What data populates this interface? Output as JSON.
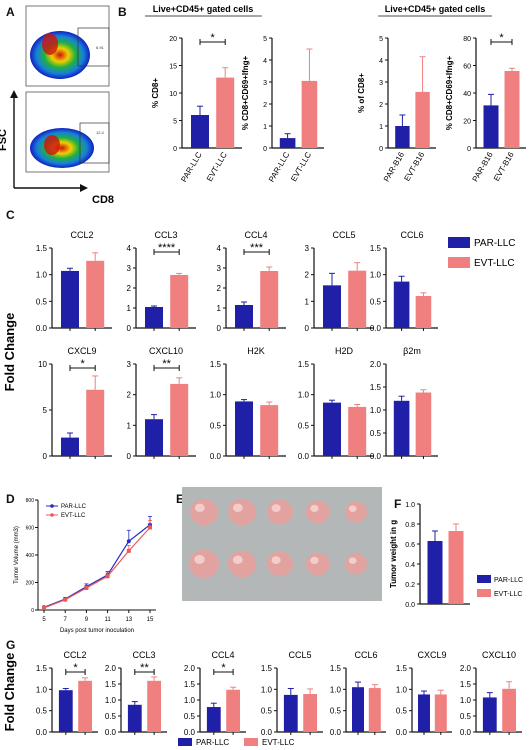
{
  "colors": {
    "par": "#1f1fa8",
    "evt": "#f08080",
    "axis": "#111111"
  },
  "panel_letters": [
    "A",
    "B",
    "C",
    "D",
    "E",
    "F",
    "G"
  ],
  "panel_a": {
    "fsc_label": "FSC",
    "cd8_label": "CD8",
    "gate_top": "6.91",
    "gate_bottom": "12.4"
  },
  "panel_b": {
    "group1_title": "Live+CD45+ gated cells",
    "group2_title": "Live+CD45+ gated cells"
  },
  "panel_c": {
    "ylabel": "Fold Change",
    "legend": [
      "PAR-LLC",
      "EVT-LLC"
    ]
  },
  "panel_g": {
    "ylabel": "Fold Change",
    "legend": [
      "PAR-LLC",
      "EVT-LLC"
    ]
  },
  "chart_data": [
    {
      "id": "B1",
      "type": "bar",
      "categories": [
        "PAR-LLC",
        "EVT-LLC"
      ],
      "values": [
        6,
        12.8
      ],
      "errors": [
        1.6,
        1.8
      ],
      "ylabel": "% CD8+",
      "ylim": [
        0,
        20
      ],
      "yticks": [
        0,
        5,
        10,
        15,
        20
      ],
      "sig": "*"
    },
    {
      "id": "B2",
      "type": "bar",
      "categories": [
        "PAR-LLC",
        "EVT-LLC"
      ],
      "values": [
        0.45,
        3.05
      ],
      "errors": [
        0.2,
        1.45
      ],
      "ylabel": "% CD8+CD69+Ifng+",
      "ylim": [
        0,
        5
      ],
      "yticks": [
        0,
        1,
        2,
        3,
        4,
        5
      ],
      "sig": ""
    },
    {
      "id": "B3",
      "type": "bar",
      "categories": [
        "PAR-B16",
        "EVT-B16"
      ],
      "values": [
        1,
        2.55
      ],
      "errors": [
        0.5,
        1.6
      ],
      "ylabel": "% of CD8+",
      "ylim": [
        0,
        5
      ],
      "yticks": [
        0,
        1,
        2,
        3,
        4,
        5
      ],
      "sig": ""
    },
    {
      "id": "B4",
      "type": "bar",
      "categories": [
        "PAR-B16",
        "EVT-B16"
      ],
      "values": [
        31,
        56
      ],
      "errors": [
        8,
        2
      ],
      "ylabel": "% CD8+CD69+Ifng+",
      "ylim": [
        0,
        80
      ],
      "yticks": [
        0,
        20,
        40,
        60,
        80
      ],
      "sig": "*"
    },
    {
      "id": "C-CCL2",
      "type": "bar",
      "title": "CCL2",
      "values": [
        1.07,
        1.26
      ],
      "errors": [
        0.05,
        0.15
      ],
      "ylim": [
        0,
        1.5
      ],
      "yticks": [
        0.0,
        0.5,
        1.0,
        1.5
      ],
      "sig": ""
    },
    {
      "id": "C-CCL3",
      "type": "bar",
      "title": "CCL3",
      "values": [
        1.05,
        2.65
      ],
      "errors": [
        0.05,
        0.08
      ],
      "ylim": [
        0,
        4
      ],
      "yticks": [
        0,
        1,
        2,
        3,
        4
      ],
      "sig": "****"
    },
    {
      "id": "C-CCL4",
      "type": "bar",
      "title": "CCL4",
      "values": [
        1.15,
        2.85
      ],
      "errors": [
        0.15,
        0.2
      ],
      "ylim": [
        0,
        4
      ],
      "yticks": [
        0,
        1,
        2,
        3,
        4
      ],
      "sig": "***"
    },
    {
      "id": "C-CCL5",
      "type": "bar",
      "title": "CCL5",
      "values": [
        1.6,
        2.15
      ],
      "errors": [
        0.45,
        0.3
      ],
      "ylim": [
        0,
        3
      ],
      "yticks": [
        0,
        1,
        2,
        3
      ],
      "sig": ""
    },
    {
      "id": "C-CCL6",
      "type": "bar",
      "title": "CCL6",
      "values": [
        0.87,
        0.6
      ],
      "errors": [
        0.1,
        0.06
      ],
      "ylim": [
        0,
        1.5
      ],
      "yticks": [
        0.0,
        0.5,
        1.0,
        1.5
      ],
      "sig": ""
    },
    {
      "id": "C-CXCL9",
      "type": "bar",
      "title": "CXCL9",
      "values": [
        2,
        7.2
      ],
      "errors": [
        0.5,
        1.5
      ],
      "ylim": [
        0,
        10
      ],
      "yticks": [
        0,
        5,
        10
      ],
      "sig": "*"
    },
    {
      "id": "C-CXCL10",
      "type": "bar",
      "title": "CXCL10",
      "values": [
        1.2,
        2.35
      ],
      "errors": [
        0.15,
        0.2
      ],
      "ylim": [
        0,
        3
      ],
      "yticks": [
        0,
        1,
        2,
        3
      ],
      "sig": "**"
    },
    {
      "id": "C-H2K",
      "type": "bar",
      "title": "H2K",
      "values": [
        0.89,
        0.83
      ],
      "errors": [
        0.03,
        0.05
      ],
      "ylim": [
        0,
        1.5
      ],
      "yticks": [
        0.0,
        0.5,
        1.0,
        1.5
      ],
      "sig": ""
    },
    {
      "id": "C-H2D",
      "type": "bar",
      "title": "H2D",
      "values": [
        0.87,
        0.8
      ],
      "errors": [
        0.04,
        0.04
      ],
      "ylim": [
        0,
        1.5
      ],
      "yticks": [
        0.0,
        0.5,
        1.0,
        1.5
      ],
      "sig": ""
    },
    {
      "id": "C-B2m",
      "type": "bar",
      "title": "β2m",
      "values": [
        1.2,
        1.38
      ],
      "errors": [
        0.1,
        0.06
      ],
      "ylim": [
        0,
        2.0
      ],
      "yticks": [
        0.0,
        0.5,
        1.0,
        1.5,
        2.0
      ],
      "sig": ""
    },
    {
      "id": "D",
      "type": "line",
      "x": [
        5,
        7,
        9,
        11,
        13,
        15
      ],
      "series": [
        {
          "name": "PAR-LLC",
          "values": [
            20,
            80,
            170,
            255,
            500,
            620
          ],
          "errors": [
            5,
            10,
            20,
            25,
            80,
            60
          ]
        },
        {
          "name": "EVT-LLC",
          "values": [
            15,
            75,
            160,
            245,
            430,
            600
          ],
          "errors": [
            5,
            10,
            15,
            25,
            40,
            50
          ]
        }
      ],
      "xlabel": "Days post tumor inoculation",
      "ylabel": "Tumor Volume (mm3)",
      "ylim": [
        0,
        800
      ],
      "yticks": [
        0,
        200,
        400,
        600,
        800
      ],
      "xticks": [
        5,
        7,
        9,
        11,
        13,
        15
      ]
    },
    {
      "id": "F",
      "type": "bar",
      "categories": [
        "PAR-LLC",
        "EVT-LLC"
      ],
      "values": [
        0.63,
        0.73
      ],
      "errors": [
        0.1,
        0.07
      ],
      "ylabel": "Tumor weight in g",
      "ylim": [
        0,
        1.0
      ],
      "yticks": [
        0.0,
        0.2,
        0.4,
        0.6,
        0.8,
        1.0
      ],
      "sig": ""
    },
    {
      "id": "G-CCL2",
      "type": "bar",
      "title": "CCL2",
      "values": [
        0.98,
        1.2
      ],
      "errors": [
        0.04,
        0.07
      ],
      "ylim": [
        0,
        1.5
      ],
      "yticks": [
        0.0,
        0.5,
        1.0,
        1.5
      ],
      "sig": "*"
    },
    {
      "id": "G-CCL3",
      "type": "bar",
      "title": "CCL3",
      "values": [
        0.85,
        1.6
      ],
      "errors": [
        0.1,
        0.12
      ],
      "ylim": [
        0,
        2.0
      ],
      "yticks": [
        0.0,
        0.5,
        1.0,
        1.5,
        2.0
      ],
      "sig": "**"
    },
    {
      "id": "G-CCL4",
      "type": "bar",
      "title": "CCL4",
      "values": [
        0.78,
        1.32
      ],
      "errors": [
        0.12,
        0.08
      ],
      "ylim": [
        0,
        2.0
      ],
      "yticks": [
        0.0,
        0.5,
        1.0,
        1.5,
        2.0
      ],
      "sig": "*"
    },
    {
      "id": "G-CCL5",
      "type": "bar",
      "title": "CCL5",
      "values": [
        0.87,
        0.89
      ],
      "errors": [
        0.15,
        0.12
      ],
      "ylim": [
        0,
        1.5
      ],
      "yticks": [
        0.0,
        0.5,
        1.0,
        1.5
      ],
      "sig": ""
    },
    {
      "id": "G-CCL6",
      "type": "bar",
      "title": "CCL6",
      "values": [
        1.05,
        1.03
      ],
      "errors": [
        0.12,
        0.08
      ],
      "ylim": [
        0,
        1.5
      ],
      "yticks": [
        0.0,
        0.5,
        1.0,
        1.5
      ],
      "sig": ""
    },
    {
      "id": "G-CXCL9",
      "type": "bar",
      "title": "CXCL9",
      "values": [
        0.88,
        0.88
      ],
      "errors": [
        0.08,
        0.1
      ],
      "ylim": [
        0,
        1.5
      ],
      "yticks": [
        0.0,
        0.5,
        1.0,
        1.5
      ],
      "sig": ""
    },
    {
      "id": "G-CXCL10",
      "type": "bar",
      "title": "CXCL10",
      "values": [
        1.08,
        1.35
      ],
      "errors": [
        0.15,
        0.22
      ],
      "ylim": [
        0,
        2.0
      ],
      "yticks": [
        0.0,
        0.5,
        1.0,
        1.5,
        2.0
      ],
      "sig": ""
    }
  ]
}
